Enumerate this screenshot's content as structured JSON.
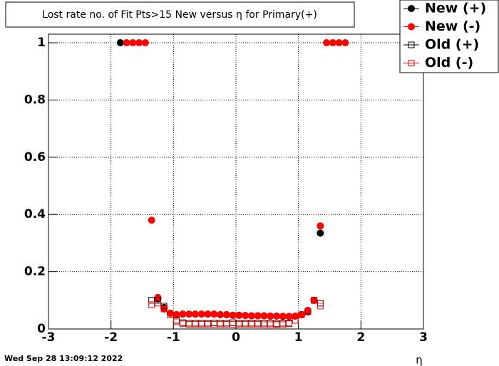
{
  "chart_data": {
    "type": "scatter",
    "title": "Lost rate no. of Fit Pts>15 New versus η for Primary(+)",
    "x_label": "η",
    "timestamp": "Wed Sep 28 13:09:12 2022",
    "xlim": [
      -3,
      3
    ],
    "ylim": [
      0,
      1.03
    ],
    "xticks": [
      -3,
      -2,
      -1,
      0,
      1,
      2,
      3
    ],
    "yticks": [
      0,
      0.2,
      0.4,
      0.6,
      0.8,
      1
    ],
    "grid": true,
    "legend": "top-right",
    "series": [
      {
        "name": "New (+)",
        "color": "#000000",
        "marker": "circle",
        "filled": true,
        "x": [
          -1.85,
          -1.25,
          -1.15,
          -1.05,
          -0.95,
          -0.85,
          -0.75,
          -0.65,
          -0.55,
          -0.45,
          -0.35,
          -0.25,
          -0.15,
          -0.05,
          0.05,
          0.15,
          0.25,
          0.35,
          0.45,
          0.55,
          0.65,
          0.75,
          0.85,
          0.95,
          1.05,
          1.15,
          1.25,
          1.35
        ],
        "values": [
          1,
          0.105,
          0.075,
          0.055,
          0.05,
          0.052,
          0.052,
          0.052,
          0.052,
          0.052,
          0.052,
          0.05,
          0.05,
          0.048,
          0.048,
          0.047,
          0.046,
          0.046,
          0.046,
          0.045,
          0.045,
          0.044,
          0.044,
          0.045,
          0.05,
          0.06,
          0.1,
          0.335
        ]
      },
      {
        "name": "New (-)",
        "color": "#ff0000",
        "marker": "circle",
        "filled": true,
        "x": [
          -1.75,
          -1.65,
          -1.55,
          -1.45,
          -1.35,
          -1.25,
          -1.15,
          -1.05,
          -0.95,
          -0.85,
          -0.75,
          -0.65,
          -0.55,
          -0.45,
          -0.35,
          -0.25,
          -0.15,
          -0.05,
          0.05,
          0.15,
          0.25,
          0.35,
          0.45,
          0.55,
          0.65,
          0.75,
          0.85,
          0.95,
          1.05,
          1.15,
          1.25,
          1.35,
          1.45,
          1.55,
          1.65,
          1.75
        ],
        "values": [
          1,
          1,
          1,
          1,
          0.38,
          0.11,
          0.07,
          0.055,
          0.05,
          0.052,
          0.052,
          0.052,
          0.052,
          0.052,
          0.052,
          0.05,
          0.05,
          0.048,
          0.048,
          0.047,
          0.046,
          0.046,
          0.046,
          0.045,
          0.045,
          0.044,
          0.044,
          0.045,
          0.05,
          0.065,
          0.1,
          0.36,
          1,
          1,
          1,
          1
        ]
      },
      {
        "name": "Old (+)",
        "color": "#000000",
        "marker": "square",
        "filled": false,
        "x": [
          -1.35,
          -1.25,
          -1.15,
          -1.05,
          -0.95,
          -0.85,
          -0.75,
          -0.65,
          -0.55,
          -0.45,
          -0.35,
          -0.25,
          -0.15,
          -0.05,
          0.05,
          0.15,
          0.25,
          0.35,
          0.45,
          0.55,
          0.65,
          0.75,
          0.85,
          0.95,
          1.05,
          1.15,
          1.25,
          1.35
        ],
        "values": [
          0.1,
          0.1,
          0.08,
          0.05,
          0.03,
          0.022,
          0.02,
          0.02,
          0.02,
          0.02,
          0.021,
          0.02,
          0.02,
          0.022,
          0.02,
          0.02,
          0.02,
          0.02,
          0.02,
          0.02,
          0.018,
          0.02,
          0.02,
          0.03,
          0.05,
          0.06,
          0.1,
          0.09
        ]
      },
      {
        "name": "Old (-)",
        "color": "#ff0000",
        "marker": "square",
        "filled": false,
        "x": [
          -1.35,
          -1.25,
          -1.15,
          -1.05,
          -0.95,
          -0.85,
          -0.75,
          -0.65,
          -0.55,
          -0.45,
          -0.35,
          -0.25,
          -0.15,
          -0.05,
          0.05,
          0.15,
          0.25,
          0.35,
          0.45,
          0.55,
          0.65,
          0.75,
          0.85,
          0.95,
          1.05,
          1.15,
          1.25,
          1.35
        ],
        "values": [
          0.085,
          0.09,
          0.07,
          0.05,
          0.025,
          0.018,
          0.016,
          0.016,
          0.016,
          0.016,
          0.016,
          0.016,
          0.016,
          0.016,
          0.016,
          0.016,
          0.016,
          0.016,
          0.015,
          0.015,
          0.015,
          0.015,
          0.018,
          0.03,
          0.05,
          0.06,
          0.1,
          0.08
        ]
      }
    ]
  }
}
